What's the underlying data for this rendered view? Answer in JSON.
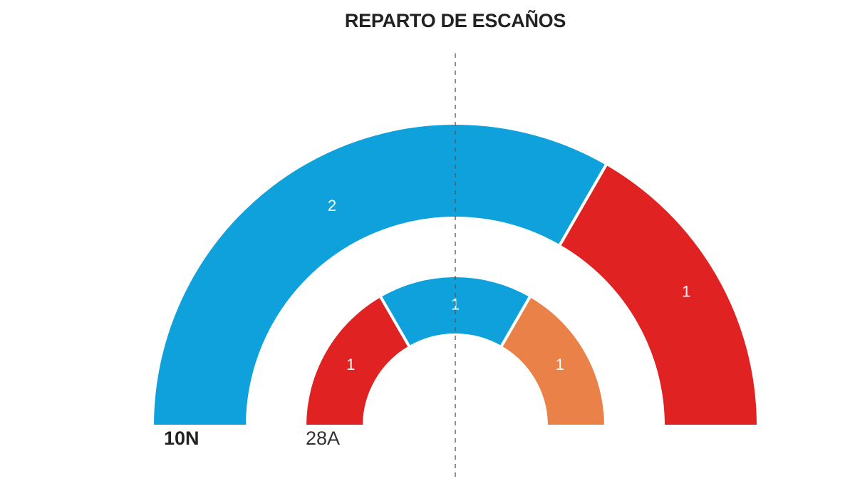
{
  "title": "REPARTO DE ESCAÑOS",
  "labels": {
    "outer": "10N",
    "inner": "28A"
  },
  "colors": {
    "blue": "#0ea1dc",
    "red": "#e02222",
    "orange": "#ea8148"
  },
  "chart_data": {
    "type": "pie",
    "subtype": "semicircle-parliament",
    "title": "REPARTO DE ESCAÑOS",
    "series": [
      {
        "name": "10N",
        "ring": "outer",
        "segments": [
          {
            "party": "blue",
            "seats": 2,
            "color": "#0ea1dc"
          },
          {
            "party": "red",
            "seats": 1,
            "color": "#e02222"
          }
        ]
      },
      {
        "name": "28A",
        "ring": "inner",
        "segments": [
          {
            "party": "red",
            "seats": 1,
            "color": "#e02222"
          },
          {
            "party": "blue",
            "seats": 1,
            "color": "#0ea1dc"
          },
          {
            "party": "orange",
            "seats": 1,
            "color": "#ea8148"
          }
        ]
      }
    ],
    "total_seats": 3,
    "majority_line": "dashed vertical line at center"
  }
}
